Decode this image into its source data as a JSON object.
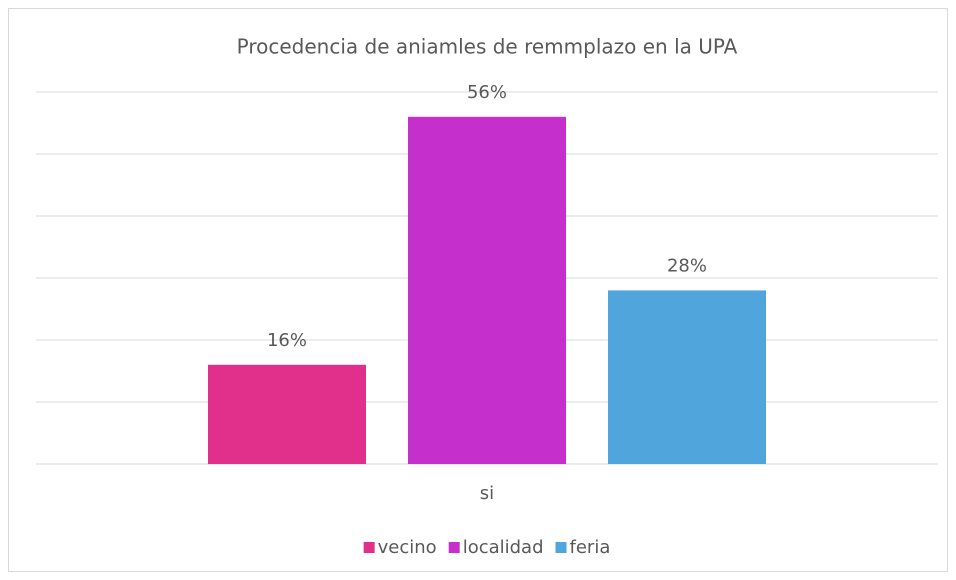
{
  "chart_data": {
    "type": "bar",
    "title": "Procedencia de aniamles de remmplazo en la UPA",
    "categories": [
      "si"
    ],
    "series": [
      {
        "name": "vecino",
        "color": "#e0308c",
        "values": [
          16
        ],
        "value_labels": [
          "16%"
        ]
      },
      {
        "name": "localidad",
        "color": "#c52fcb",
        "values": [
          56
        ],
        "value_labels": [
          "56%"
        ]
      },
      {
        "name": "feria",
        "color": "#4fa5dc",
        "values": [
          28
        ],
        "value_labels": [
          "28%"
        ]
      }
    ],
    "ylim": [
      0,
      60
    ],
    "yticks": [
      0,
      10,
      20,
      30,
      40,
      50,
      60
    ],
    "grid": true,
    "legend": "bottom"
  }
}
